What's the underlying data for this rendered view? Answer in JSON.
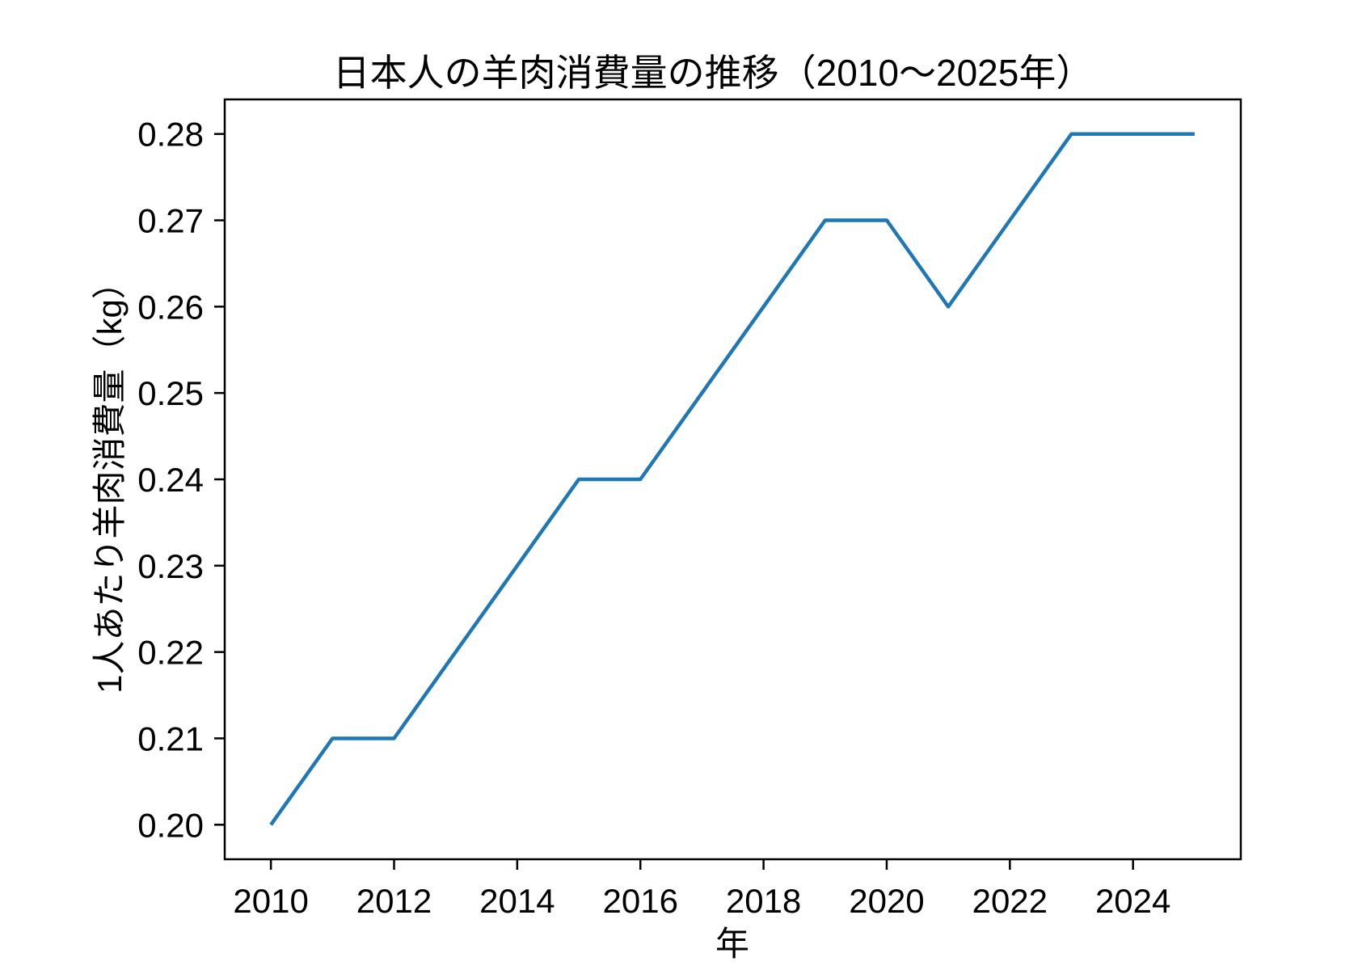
{
  "figure": {
    "background": "#ffffff",
    "text_color": "#000000"
  },
  "chart_data": {
    "type": "line",
    "title": "日本人の羊肉消費量の推移（2010～2025年）",
    "xlabel": "年",
    "ylabel": "1人あたり羊肉消費量（kg）",
    "x": [
      2010,
      2011,
      2012,
      2013,
      2014,
      2015,
      2016,
      2017,
      2018,
      2019,
      2020,
      2021,
      2022,
      2023,
      2024,
      2025
    ],
    "series": [
      {
        "name": "1人あたり羊肉消費量",
        "values": [
          0.2,
          0.21,
          0.21,
          0.22,
          0.23,
          0.24,
          0.24,
          0.25,
          0.26,
          0.27,
          0.27,
          0.26,
          0.27,
          0.28,
          0.28,
          0.28
        ]
      }
    ],
    "xlim": [
      2009.25,
      2025.75
    ],
    "ylim": [
      0.196,
      0.284
    ],
    "xticks": [
      2010,
      2012,
      2014,
      2016,
      2018,
      2020,
      2022,
      2024
    ],
    "yticks": [
      0.2,
      0.21,
      0.22,
      0.23,
      0.24,
      0.25,
      0.26,
      0.27,
      0.28
    ],
    "ytick_labels": [
      "0.20",
      "0.21",
      "0.22",
      "0.23",
      "0.24",
      "0.25",
      "0.26",
      "0.27",
      "0.28"
    ],
    "grid": false,
    "legend": null,
    "line_color": "#1f77b4",
    "line_width": 4.5,
    "axis_color": "#000000"
  }
}
